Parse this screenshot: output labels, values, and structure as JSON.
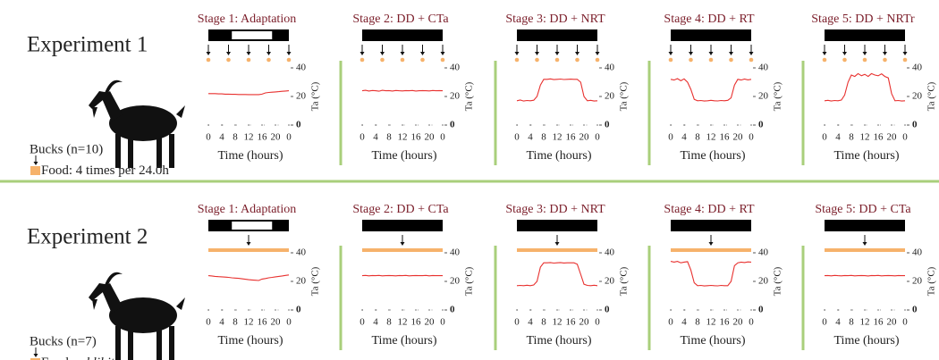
{
  "experiments": [
    {
      "title": "Experiment 1",
      "subjects": "Bucks (n=10)",
      "food_label": "Food: 4 times per 24.0h"
    },
    {
      "title": "Experiment  2",
      "subjects": "Bucks (n=7)",
      "food_label": "Food:",
      "food_label_emphasis": "ad libitum"
    }
  ],
  "chart_data": [
    {
      "type": "line",
      "title": "Stage 1: Adaptation",
      "xlabel": "Time (hours)",
      "ylabel": "Ta (°C)",
      "light_period": [
        7,
        19
      ],
      "feeding_times": [
        0,
        6,
        12,
        18,
        24
      ],
      "food_bar": false,
      "xlim": [
        0,
        24
      ],
      "xticks": [
        0,
        4,
        8,
        12,
        16,
        20,
        {
          "value": 24,
          "label": "0"
        }
      ],
      "ylim": [
        0,
        40
      ],
      "yticks": [
        0,
        20,
        40
      ],
      "series": [
        {
          "color": "#e8312f",
          "x": [
            0,
            1,
            2,
            3,
            4,
            5,
            6,
            7,
            8,
            9,
            10,
            11,
            12,
            13,
            14,
            15,
            16,
            17,
            18,
            19,
            20,
            21,
            22,
            23,
            24
          ],
          "values": [
            22,
            22,
            22,
            21.8,
            21.8,
            21.6,
            21.6,
            21.5,
            21.5,
            21.4,
            21.4,
            21.4,
            21.3,
            21.3,
            21.3,
            21.3,
            21.6,
            22.5,
            22.8,
            23,
            23.2,
            23.4,
            23.6,
            23.8,
            24
          ]
        }
      ]
    },
    {
      "type": "line",
      "title": "Stage 2: DD + CTa",
      "xlabel": "Time (hours)",
      "ylabel": "Ta (°C)",
      "feeding_times": [
        0,
        6,
        12,
        18,
        24
      ],
      "food_bar": false,
      "xlim": [
        0,
        24
      ],
      "xticks": [
        0,
        4,
        8,
        12,
        16,
        20,
        {
          "value": 24,
          "label": "0"
        }
      ],
      "ylim": [
        0,
        40
      ],
      "yticks": [
        0,
        20,
        40
      ],
      "series": [
        {
          "color": "#e8312f",
          "x": [
            0,
            1,
            2,
            3,
            4,
            5,
            6,
            7,
            8,
            9,
            10,
            11,
            12,
            13,
            14,
            15,
            16,
            17,
            18,
            19,
            20,
            21,
            22,
            23,
            24
          ],
          "values": [
            24,
            24.3,
            23.8,
            24.2,
            24,
            23.7,
            24.3,
            24,
            24.1,
            23.8,
            24.2,
            24,
            23.9,
            24.1,
            24,
            24.2,
            23.8,
            24,
            24.1,
            24,
            23.9,
            24.2,
            24,
            24.1,
            24
          ]
        }
      ]
    },
    {
      "type": "line",
      "title": "Stage 3: DD + NRT",
      "xlabel": "Time (hours)",
      "ylabel": "Ta (°C)",
      "feeding_times": [
        0,
        6,
        12,
        18,
        24
      ],
      "food_bar": false,
      "xlim": [
        0,
        24
      ],
      "xticks": [
        0,
        4,
        8,
        12,
        16,
        20,
        {
          "value": 24,
          "label": "0"
        }
      ],
      "ylim": [
        0,
        40
      ],
      "yticks": [
        0,
        20,
        40
      ],
      "series": [
        {
          "color": "#e8312f",
          "x": [
            0,
            1,
            2,
            3,
            4,
            5,
            6,
            7,
            8,
            9,
            10,
            11,
            12,
            13,
            14,
            15,
            16,
            17,
            18,
            19,
            20,
            21,
            22,
            23,
            24
          ],
          "values": [
            17,
            17.5,
            16.8,
            17.2,
            17,
            17.4,
            20,
            28,
            32,
            32,
            32.3,
            31.8,
            32,
            32.2,
            31.9,
            32,
            32.1,
            32,
            32,
            30,
            20,
            17,
            17.3,
            16.8,
            17
          ]
        }
      ]
    },
    {
      "type": "line",
      "title": "Stage 4: DD + RT",
      "xlabel": "Time (hours)",
      "ylabel": "Ta (°C)",
      "feeding_times": [
        0,
        6,
        12,
        18,
        24
      ],
      "food_bar": false,
      "xlim": [
        0,
        24
      ],
      "xticks": [
        0,
        4,
        8,
        12,
        16,
        20,
        {
          "value": 24,
          "label": "0"
        }
      ],
      "ylim": [
        0,
        40
      ],
      "yticks": [
        0,
        20,
        40
      ],
      "series": [
        {
          "color": "#e8312f",
          "x": [
            0,
            1,
            2,
            3,
            4,
            5,
            6,
            7,
            8,
            9,
            10,
            11,
            12,
            13,
            14,
            15,
            16,
            17,
            18,
            19,
            20,
            21,
            22,
            23,
            24
          ],
          "values": [
            32,
            31.5,
            32.5,
            31,
            32.3,
            30,
            25,
            18,
            17,
            17.2,
            16.8,
            17,
            17.3,
            17,
            16.9,
            17.2,
            17,
            17.3,
            19,
            28,
            32,
            31.5,
            32.2,
            31.6,
            32
          ]
        }
      ]
    },
    {
      "type": "line",
      "title": "Stage 5: DD + NRTr",
      "xlabel": "Time (hours)",
      "ylabel": "Ta (°C)",
      "feeding_times": [
        0,
        6,
        12,
        18,
        24
      ],
      "food_bar": false,
      "xlim": [
        0,
        24
      ],
      "xticks": [
        0,
        4,
        8,
        12,
        16,
        20,
        {
          "value": 24,
          "label": "0"
        }
      ],
      "ylim": [
        0,
        40
      ],
      "yticks": [
        0,
        20,
        40
      ],
      "series": [
        {
          "color": "#e8312f",
          "x": [
            0,
            1,
            2,
            3,
            4,
            5,
            6,
            7,
            8,
            9,
            10,
            11,
            12,
            13,
            14,
            15,
            16,
            17,
            18,
            19,
            20,
            21,
            22,
            23,
            24
          ],
          "values": [
            17,
            17.3,
            16.8,
            17.2,
            17,
            17.5,
            21,
            30,
            35,
            34,
            36,
            34.5,
            35.5,
            34,
            36,
            35,
            34.5,
            35.8,
            34,
            33,
            22,
            17,
            17.2,
            16.8,
            17
          ]
        }
      ]
    },
    {
      "type": "line",
      "title": "Stage 1: Adaptation",
      "xlabel": "Time (hours)",
      "ylabel": "Ta (°C)",
      "light_period": [
        7,
        19
      ],
      "feeding_times": [
        12
      ],
      "food_bar": true,
      "xlim": [
        0,
        24
      ],
      "xticks": [
        0,
        4,
        8,
        12,
        16,
        20,
        {
          "value": 24,
          "label": "0"
        }
      ],
      "ylim": [
        0,
        40
      ],
      "yticks": [
        0,
        20,
        40
      ],
      "series": [
        {
          "color": "#e8312f",
          "x": [
            0,
            1,
            2,
            3,
            4,
            5,
            6,
            7,
            8,
            9,
            10,
            11,
            12,
            13,
            14,
            15,
            16,
            17,
            18,
            19,
            20,
            21,
            22,
            23,
            24
          ],
          "values": [
            24,
            23.8,
            23.5,
            23.3,
            23.2,
            23,
            22.8,
            22.5,
            22.3,
            22.1,
            21.8,
            21.5,
            21.2,
            21,
            20.8,
            20.6,
            21.6,
            22,
            22.5,
            22.8,
            23.2,
            23.5,
            23.8,
            24.2,
            24.5
          ]
        }
      ]
    },
    {
      "type": "line",
      "title": "Stage 2: DD + CTa",
      "xlabel": "Time (hours)",
      "ylabel": "Ta (°C)",
      "feeding_times": [
        12
      ],
      "food_bar": true,
      "xlim": [
        0,
        24
      ],
      "xticks": [
        0,
        4,
        8,
        12,
        16,
        20,
        {
          "value": 24,
          "label": "0"
        }
      ],
      "ylim": [
        0,
        40
      ],
      "yticks": [
        0,
        20,
        40
      ],
      "series": [
        {
          "color": "#e8312f",
          "x": [
            0,
            1,
            2,
            3,
            4,
            5,
            6,
            7,
            8,
            9,
            10,
            11,
            12,
            13,
            14,
            15,
            16,
            17,
            18,
            19,
            20,
            21,
            22,
            23,
            24
          ],
          "values": [
            24,
            24.2,
            23.9,
            24.1,
            24,
            24.2,
            23.9,
            24,
            24.1,
            24,
            23.9,
            24.1,
            24,
            24.2,
            23.9,
            24,
            24.1,
            24,
            24,
            24.2,
            23.9,
            24.1,
            24,
            24,
            24
          ]
        }
      ]
    },
    {
      "type": "line",
      "title": "Stage 3: DD + NRT",
      "xlabel": "Time (hours)",
      "ylabel": "Ta (°C)",
      "feeding_times": [
        12
      ],
      "food_bar": true,
      "xlim": [
        0,
        24
      ],
      "xticks": [
        0,
        4,
        8,
        12,
        16,
        20,
        {
          "value": 24,
          "label": "0"
        }
      ],
      "ylim": [
        0,
        40
      ],
      "yticks": [
        0,
        20,
        40
      ],
      "series": [
        {
          "color": "#e8312f",
          "x": [
            0,
            1,
            2,
            3,
            4,
            5,
            6,
            7,
            8,
            9,
            10,
            11,
            12,
            13,
            14,
            15,
            16,
            17,
            18,
            19,
            20,
            21,
            22,
            23,
            24
          ],
          "values": [
            17,
            17.2,
            17,
            17.3,
            17,
            17.5,
            20,
            30,
            33,
            33,
            33.2,
            32.8,
            33,
            33.2,
            32.9,
            33,
            33,
            33,
            32,
            25,
            18,
            17.2,
            17,
            17.3,
            17
          ]
        }
      ]
    },
    {
      "type": "line",
      "title": "Stage 4: DD + RT",
      "xlabel": "Time (hours)",
      "ylabel": "Ta (°C)",
      "feeding_times": [
        12
      ],
      "food_bar": true,
      "xlim": [
        0,
        24
      ],
      "xticks": [
        0,
        4,
        8,
        12,
        16,
        20,
        {
          "value": 24,
          "label": "0"
        }
      ],
      "ylim": [
        0,
        40
      ],
      "yticks": [
        0,
        20,
        40
      ],
      "series": [
        {
          "color": "#e8312f",
          "x": [
            0,
            1,
            2,
            3,
            4,
            5,
            6,
            7,
            8,
            9,
            10,
            11,
            12,
            13,
            14,
            15,
            16,
            17,
            18,
            19,
            20,
            21,
            22,
            23,
            24
          ],
          "values": [
            34,
            33.5,
            34,
            33,
            33.5,
            33.8,
            28,
            19,
            17,
            17.2,
            16.8,
            17,
            17.2,
            17,
            16.9,
            17.2,
            17,
            17,
            20,
            31,
            33,
            33.5,
            33.2,
            33.6,
            33.5
          ]
        }
      ]
    },
    {
      "type": "line",
      "title": "Stage 5: DD + CTa",
      "xlabel": "Time (hours)",
      "ylabel": "Ta (°C)",
      "feeding_times": [
        12
      ],
      "food_bar": true,
      "xlim": [
        0,
        24
      ],
      "xticks": [
        0,
        4,
        8,
        12,
        16,
        20,
        {
          "value": 24,
          "label": "0"
        }
      ],
      "ylim": [
        0,
        40
      ],
      "yticks": [
        0,
        20,
        40
      ],
      "series": [
        {
          "color": "#e8312f",
          "x": [
            0,
            1,
            2,
            3,
            4,
            5,
            6,
            7,
            8,
            9,
            10,
            11,
            12,
            13,
            14,
            15,
            16,
            17,
            18,
            19,
            20,
            21,
            22,
            23,
            24
          ],
          "values": [
            24,
            24.1,
            23.9,
            24.2,
            24,
            23.9,
            24.1,
            24,
            24.2,
            23.9,
            24,
            24.1,
            24,
            23.8,
            24.1,
            24,
            24.2,
            23.9,
            24,
            24.1,
            24,
            23.9,
            24.1,
            24,
            24
          ]
        }
      ]
    }
  ]
}
